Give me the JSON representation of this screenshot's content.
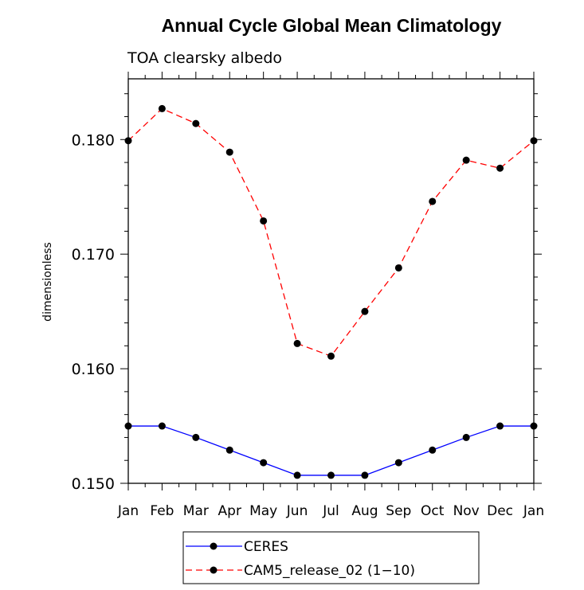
{
  "chart_data": {
    "type": "line",
    "title": "Annual Cycle Global Mean Climatology",
    "subtitle": "TOA clearsky albedo",
    "xlabel": "",
    "ylabel": "dimensionless",
    "categories": [
      "Jan",
      "Feb",
      "Mar",
      "Apr",
      "May",
      "Jun",
      "Jul",
      "Aug",
      "Sep",
      "Oct",
      "Nov",
      "Dec",
      "Jan"
    ],
    "ylim": [
      0.15,
      0.1853
    ],
    "yticks": [
      "0.150",
      "0.160",
      "0.170",
      "0.180"
    ],
    "legend_position": "bottom",
    "series": [
      {
        "name": "CERES",
        "color": "#0000ff",
        "dash": "solid",
        "values": [
          0.155,
          0.155,
          0.154,
          0.1529,
          0.1518,
          0.1507,
          0.1507,
          0.1507,
          0.1518,
          0.1529,
          0.154,
          0.155,
          0.155
        ]
      },
      {
        "name": "CAM5_release_02 (1−10)",
        "color": "#ff0000",
        "dash": "dashed",
        "values": [
          0.1799,
          0.1827,
          0.1814,
          0.1789,
          0.1729,
          0.1622,
          0.1611,
          0.165,
          0.1688,
          0.1746,
          0.1782,
          0.1775,
          0.1799
        ]
      }
    ]
  }
}
